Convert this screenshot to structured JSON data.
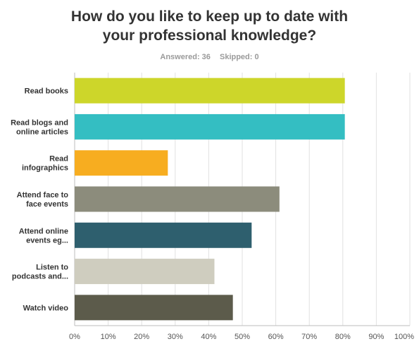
{
  "header": {
    "title_line1": "How do you like to keep up to date with",
    "title_line2": "your professional knowledge?",
    "answered": "Answered: 36",
    "skipped": "Skipped: 0"
  },
  "chart_data": {
    "type": "bar",
    "orientation": "horizontal",
    "categories": [
      [
        "Read books"
      ],
      [
        "Read blogs and",
        "online articles"
      ],
      [
        "Read",
        "infographics"
      ],
      [
        "Attend face to",
        "face events"
      ],
      [
        "Attend online",
        "events eg..."
      ],
      [
        "Listen to",
        "podcasts and..."
      ],
      [
        "Watch video"
      ]
    ],
    "values": [
      80.6,
      80.6,
      27.8,
      61.1,
      52.8,
      41.7,
      47.2
    ],
    "colors": [
      "#cdd62a",
      "#34bec2",
      "#f7ad20",
      "#8c8c7c",
      "#2e5f6e",
      "#cfcdbf",
      "#5c5b4b"
    ],
    "xlim": [
      0,
      100
    ],
    "xticks": [
      "0%",
      "10%",
      "20%",
      "30%",
      "40%",
      "50%",
      "60%",
      "70%",
      "80%",
      "90%",
      "100%"
    ],
    "grid": true
  }
}
